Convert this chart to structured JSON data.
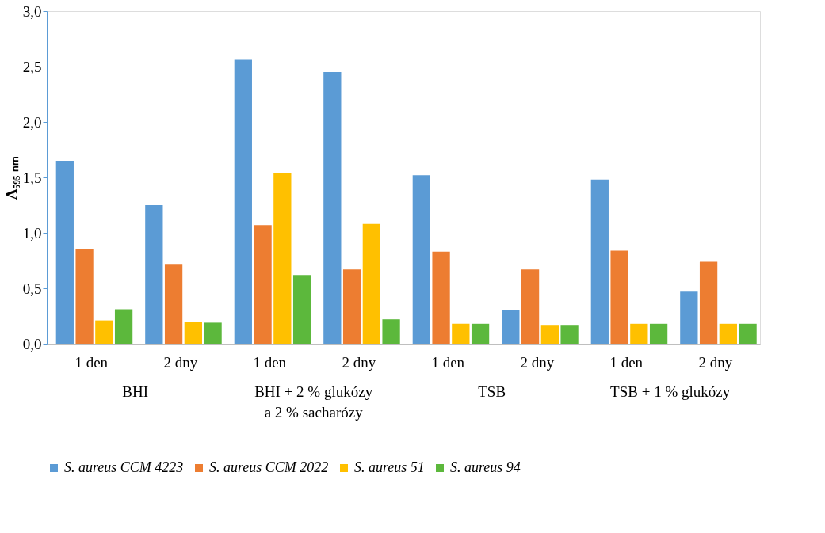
{
  "chart_data": {
    "type": "bar",
    "ylabel": "A₅₉₅ ₙₘ",
    "categories": [
      "1 den",
      "2 dny",
      "1 den",
      "2 dny",
      "1 den",
      "2 dny",
      "1 den",
      "2 dny"
    ],
    "annotations": [
      "BHI",
      "BHI + 2 % glukózy\na 2 % sacharózy",
      "TSB",
      "TSB + 1 % glukózy"
    ],
    "series": [
      {
        "name": "S. aureus CCM 4223",
        "color": "#5b9bd5",
        "values": [
          1.65,
          1.25,
          2.56,
          2.45,
          1.52,
          0.3,
          1.48,
          0.47
        ]
      },
      {
        "name": "S. aureus CCM 2022",
        "color": "#ed7d31",
        "values": [
          0.85,
          0.72,
          1.07,
          0.67,
          0.83,
          0.67,
          0.84,
          0.74
        ]
      },
      {
        "name": "S. aureus 51",
        "color": "#ffc000",
        "values": [
          0.21,
          0.2,
          1.54,
          1.08,
          0.18,
          0.17,
          0.18,
          0.18
        ]
      },
      {
        "name": "S. aureus 94",
        "color": "#5cb83c",
        "values": [
          0.31,
          0.19,
          0.62,
          0.22,
          0.18,
          0.17,
          0.18,
          0.18
        ]
      }
    ],
    "ylim": [
      0,
      3.0
    ],
    "yticks": [
      {
        "value": 0,
        "label": "0,0"
      },
      {
        "value": 0.5,
        "label": "0,5"
      },
      {
        "value": 1,
        "label": "1,0"
      },
      {
        "value": 1.5,
        "label": "1,5"
      },
      {
        "value": 2,
        "label": "2,0"
      },
      {
        "value": 2.5,
        "label": "2,5"
      },
      {
        "value": 3,
        "label": "3,0"
      }
    ],
    "grid": false,
    "legend": "bottom"
  }
}
